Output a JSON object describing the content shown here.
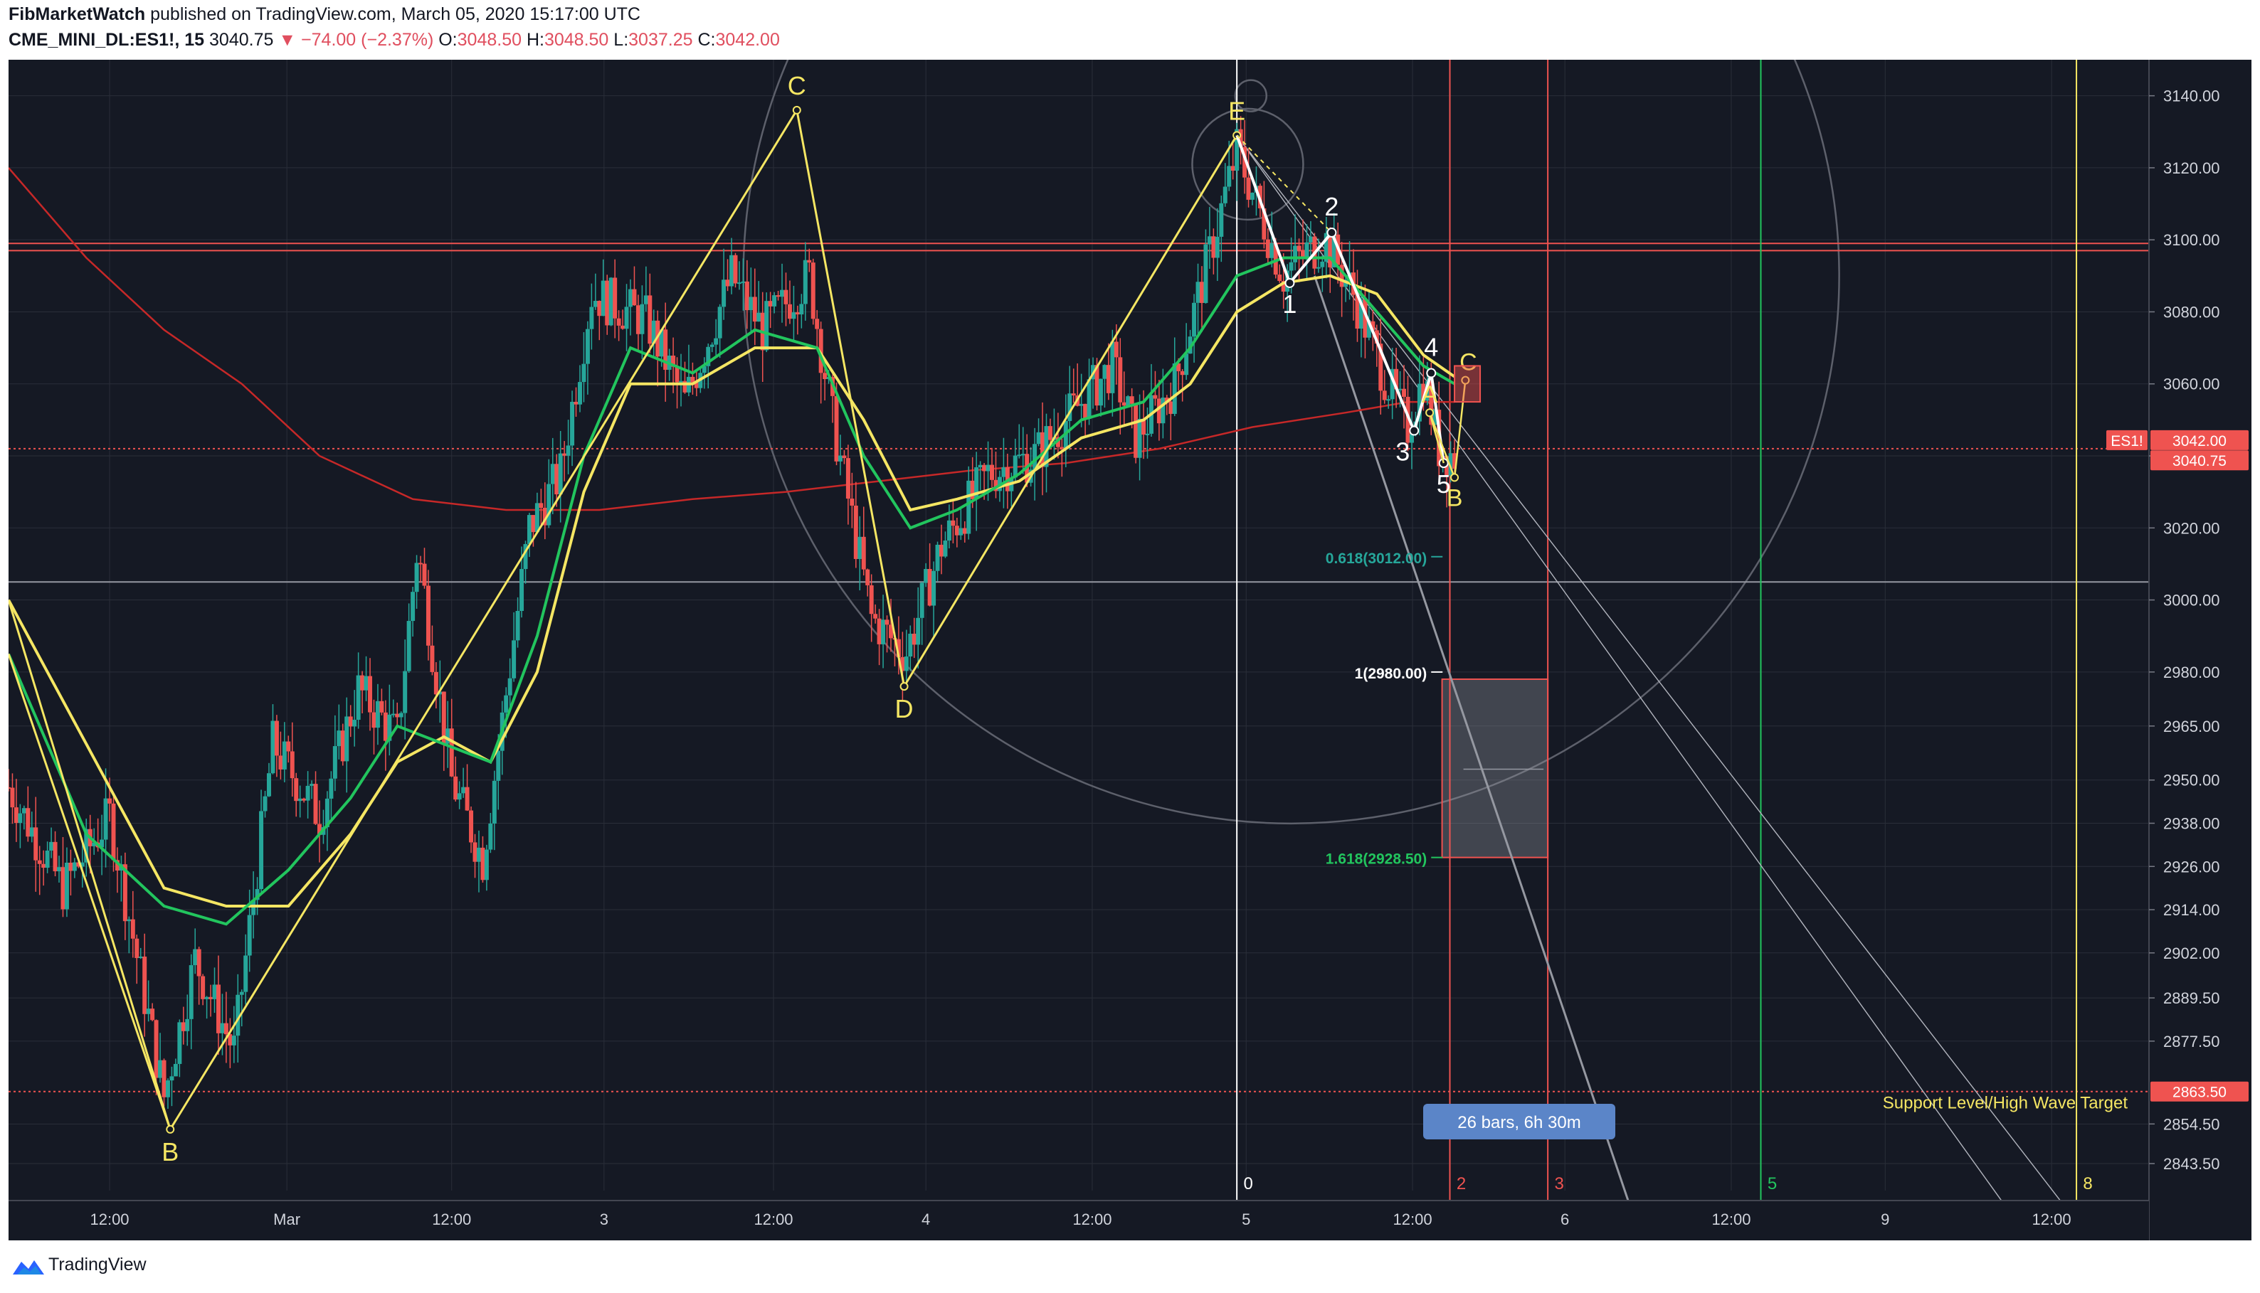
{
  "header": {
    "publisher": "FibMarketWatch",
    "published_text": "published on TradingView.com, March 05, 2020 15:17:00 UTC",
    "symbol": "CME_MINI_DL:ES1!, 15",
    "last": "3040.75",
    "change": "▼ −74.00 (−2.37%)",
    "o_label": "O:",
    "o_value": "3048.50",
    "h_label": "H:",
    "h_value": "3048.50",
    "l_label": "L:",
    "l_value": "3037.25",
    "c_label": "C:",
    "c_value": "3042.00"
  },
  "footer": {
    "brand": "TradingView"
  },
  "colors": {
    "background": "#151924",
    "up": "#26a69a",
    "down": "#ef5350",
    "wave_lines": "#f5e663",
    "ema_green": "#22c55e",
    "ema_yellow": "#f5e663",
    "ma_red": "#c62828",
    "grid": "#2a2e39",
    "axis_text": "#d1d4dc"
  },
  "chart_data": {
    "type": "candlestick",
    "symbol": "ES1!",
    "interval": "15",
    "ylim": [
      2836,
      3150
    ],
    "y_ticks": [
      3140.0,
      3120.0,
      3100.0,
      3080.0,
      3060.0,
      3040.0,
      3020.0,
      3000.0,
      2980.0,
      2965.0,
      2950.0,
      2938.0,
      2926.0,
      2914.0,
      2902.0,
      2889.5,
      2877.5,
      2854.5,
      2843.5
    ],
    "x_ticks": [
      {
        "t": 6.5,
        "label": "12:00"
      },
      {
        "t": 17.9,
        "label": "Mar"
      },
      {
        "t": 28.5,
        "label": "12:00"
      },
      {
        "t": 38.3,
        "label": "3"
      },
      {
        "t": 49.2,
        "label": "12:00"
      },
      {
        "t": 59.0,
        "label": "4"
      },
      {
        "t": 69.7,
        "label": "12:00"
      },
      {
        "t": 79.6,
        "label": "5"
      },
      {
        "t": 90.3,
        "label": "12:00"
      },
      {
        "t": 100.1,
        "label": "6"
      },
      {
        "t": 110.8,
        "label": "12:00"
      },
      {
        "t": 120.7,
        "label": "9"
      },
      {
        "t": 131.4,
        "label": "12:00"
      }
    ],
    "price_path": [
      {
        "t": 0.0,
        "p": 2948
      },
      {
        "t": 3.5,
        "p": 2920
      },
      {
        "t": 6.5,
        "p": 2940
      },
      {
        "t": 10.0,
        "p": 2862
      },
      {
        "t": 12.0,
        "p": 2900
      },
      {
        "t": 14.5,
        "p": 2875
      },
      {
        "t": 17.0,
        "p": 2960
      },
      {
        "t": 20.0,
        "p": 2940
      },
      {
        "t": 22.5,
        "p": 2975
      },
      {
        "t": 25.0,
        "p": 2962
      },
      {
        "t": 26.3,
        "p": 3015
      },
      {
        "t": 28.5,
        "p": 2950
      },
      {
        "t": 30.5,
        "p": 2928
      },
      {
        "t": 33.5,
        "p": 3020
      },
      {
        "t": 35.5,
        "p": 3035
      },
      {
        "t": 37.5,
        "p": 3085
      },
      {
        "t": 41.0,
        "p": 3078
      },
      {
        "t": 43.5,
        "p": 3055
      },
      {
        "t": 46.5,
        "p": 3090
      },
      {
        "t": 48.5,
        "p": 3075
      },
      {
        "t": 51.5,
        "p": 3090
      },
      {
        "t": 53.0,
        "p": 3050
      },
      {
        "t": 55.5,
        "p": 2995
      },
      {
        "t": 57.7,
        "p": 2985
      },
      {
        "t": 60.0,
        "p": 3015
      },
      {
        "t": 63.0,
        "p": 3035
      },
      {
        "t": 66.0,
        "p": 3040
      },
      {
        "t": 69.0,
        "p": 3055
      },
      {
        "t": 71.0,
        "p": 3065
      },
      {
        "t": 72.5,
        "p": 3045
      },
      {
        "t": 75.0,
        "p": 3060
      },
      {
        "t": 77.5,
        "p": 3100
      },
      {
        "t": 79.0,
        "p": 3125
      },
      {
        "t": 82.0,
        "p": 3090
      },
      {
        "t": 83.0,
        "p": 3095
      },
      {
        "t": 84.7,
        "p": 3100
      },
      {
        "t": 86.5,
        "p": 3085
      },
      {
        "t": 88.5,
        "p": 3062
      },
      {
        "t": 90.0,
        "p": 3048
      },
      {
        "t": 91.0,
        "p": 3062
      },
      {
        "t": 92.0,
        "p": 3042
      },
      {
        "t": 93.0,
        "p": 3040
      }
    ],
    "ema_green": [
      {
        "t": 0,
        "p": 2985
      },
      {
        "t": 5,
        "p": 2935
      },
      {
        "t": 10,
        "p": 2915
      },
      {
        "t": 14,
        "p": 2910
      },
      {
        "t": 18,
        "p": 2925
      },
      {
        "t": 22,
        "p": 2945
      },
      {
        "t": 25,
        "p": 2965
      },
      {
        "t": 28,
        "p": 2960
      },
      {
        "t": 31,
        "p": 2955
      },
      {
        "t": 34,
        "p": 2990
      },
      {
        "t": 37,
        "p": 3040
      },
      {
        "t": 40,
        "p": 3070
      },
      {
        "t": 44,
        "p": 3063
      },
      {
        "t": 48,
        "p": 3075
      },
      {
        "t": 52,
        "p": 3070
      },
      {
        "t": 55,
        "p": 3040
      },
      {
        "t": 58,
        "p": 3020
      },
      {
        "t": 61,
        "p": 3025
      },
      {
        "t": 65,
        "p": 3035
      },
      {
        "t": 69,
        "p": 3050
      },
      {
        "t": 73,
        "p": 3055
      },
      {
        "t": 76,
        "p": 3070
      },
      {
        "t": 79,
        "p": 3090
      },
      {
        "t": 82,
        "p": 3095
      },
      {
        "t": 85,
        "p": 3095
      },
      {
        "t": 88,
        "p": 3080
      },
      {
        "t": 91,
        "p": 3065
      },
      {
        "t": 93,
        "p": 3060
      }
    ],
    "ema_yellow": [
      {
        "t": 0,
        "p": 3000
      },
      {
        "t": 5,
        "p": 2960
      },
      {
        "t": 10,
        "p": 2920
      },
      {
        "t": 14,
        "p": 2915
      },
      {
        "t": 18,
        "p": 2915
      },
      {
        "t": 22,
        "p": 2935
      },
      {
        "t": 25,
        "p": 2955
      },
      {
        "t": 28,
        "p": 2962
      },
      {
        "t": 31,
        "p": 2955
      },
      {
        "t": 34,
        "p": 2980
      },
      {
        "t": 37,
        "p": 3030
      },
      {
        "t": 40,
        "p": 3060
      },
      {
        "t": 44,
        "p": 3060
      },
      {
        "t": 48,
        "p": 3070
      },
      {
        "t": 52,
        "p": 3070
      },
      {
        "t": 55,
        "p": 3050
      },
      {
        "t": 58,
        "p": 3025
      },
      {
        "t": 61,
        "p": 3028
      },
      {
        "t": 65,
        "p": 3033
      },
      {
        "t": 69,
        "p": 3045
      },
      {
        "t": 73,
        "p": 3050
      },
      {
        "t": 76,
        "p": 3060
      },
      {
        "t": 79,
        "p": 3080
      },
      {
        "t": 82,
        "p": 3088
      },
      {
        "t": 85,
        "p": 3090
      },
      {
        "t": 88,
        "p": 3085
      },
      {
        "t": 91,
        "p": 3068
      },
      {
        "t": 93,
        "p": 3062
      }
    ],
    "ma_red": [
      {
        "t": 0,
        "p": 3120
      },
      {
        "t": 5,
        "p": 3095
      },
      {
        "t": 10,
        "p": 3075
      },
      {
        "t": 15,
        "p": 3060
      },
      {
        "t": 20,
        "p": 3040
      },
      {
        "t": 26,
        "p": 3028
      },
      {
        "t": 32,
        "p": 3025
      },
      {
        "t": 38,
        "p": 3025
      },
      {
        "t": 44,
        "p": 3028
      },
      {
        "t": 50,
        "p": 3030
      },
      {
        "t": 56,
        "p": 3033
      },
      {
        "t": 62,
        "p": 3036
      },
      {
        "t": 68,
        "p": 3038
      },
      {
        "t": 74,
        "p": 3042
      },
      {
        "t": 80,
        "p": 3048
      },
      {
        "t": 86,
        "p": 3052
      },
      {
        "t": 90,
        "p": 3055
      },
      {
        "t": 93,
        "p": 3055
      }
    ],
    "wave_abcde": [
      {
        "label": "B",
        "t": 10.4,
        "p": 2853
      },
      {
        "label": "C",
        "t": 50.7,
        "p": 3136
      },
      {
        "label": "D",
        "t": 57.6,
        "p": 2976
      },
      {
        "label": "E",
        "t": 79.0,
        "p": 3129
      }
    ],
    "wave_12345": [
      {
        "label": "1",
        "t": 82.4,
        "p": 3088
      },
      {
        "label": "2",
        "t": 85.1,
        "p": 3102
      },
      {
        "label": "3",
        "t": 90.4,
        "p": 3047
      },
      {
        "label": "4",
        "t": 91.5,
        "p": 3063
      },
      {
        "label": "5",
        "t": 92.3,
        "p": 3038
      }
    ],
    "wave_abc_small": [
      {
        "label": "A",
        "t": 91.4,
        "p": 3052
      },
      {
        "label": "B",
        "t": 93.0,
        "p": 3034
      },
      {
        "label": "C",
        "t": 93.7,
        "p": 3061
      }
    ],
    "fib_levels": [
      {
        "label": "0.618(3012.00)",
        "price": 3012.0,
        "color": "#26a69a"
      },
      {
        "label": "1(2980.00)",
        "price": 2980.0,
        "color": "#ffffff"
      },
      {
        "label": "1.618(2928.50)",
        "price": 2928.5,
        "color": "#22c55e"
      }
    ],
    "horizontal_lines": [
      {
        "price": 3099.0,
        "color": "#ef5350",
        "style": "solid"
      },
      {
        "price": 3097.0,
        "color": "#ef5350",
        "style": "solid"
      },
      {
        "price": 3042.0,
        "color": "#ef5350",
        "style": "dotted"
      },
      {
        "price": 3005.0,
        "color": "#9598a1",
        "style": "solid"
      },
      {
        "price": 2863.5,
        "color": "#ef5350",
        "style": "dotted"
      }
    ],
    "time_cycles": [
      {
        "label": "0",
        "t": 79.0,
        "color": "#ffffff"
      },
      {
        "label": "2",
        "t": 92.7,
        "color": "#ef5350"
      },
      {
        "label": "3",
        "t": 99.0,
        "color": "#ef5350"
      },
      {
        "label": "5",
        "t": 112.7,
        "color": "#22c55e"
      },
      {
        "label": "8",
        "t": 133.0,
        "color": "#f5e663"
      }
    ],
    "projection_box": {
      "t1": 92.2,
      "t2": 99.0,
      "p_top": 2978,
      "p_bottom": 2928.5
    },
    "measure_label": "26 bars, 6h 30m",
    "support_label": "Support Level/High Wave Target",
    "price_tags": [
      {
        "text": "ES1!",
        "price": 3042.0
      },
      {
        "text": "3042.00",
        "price": 3042.0
      },
      {
        "text": "3040.75",
        "price": 3040.75
      },
      {
        "text": "2863.50",
        "price": 2863.5
      }
    ]
  }
}
